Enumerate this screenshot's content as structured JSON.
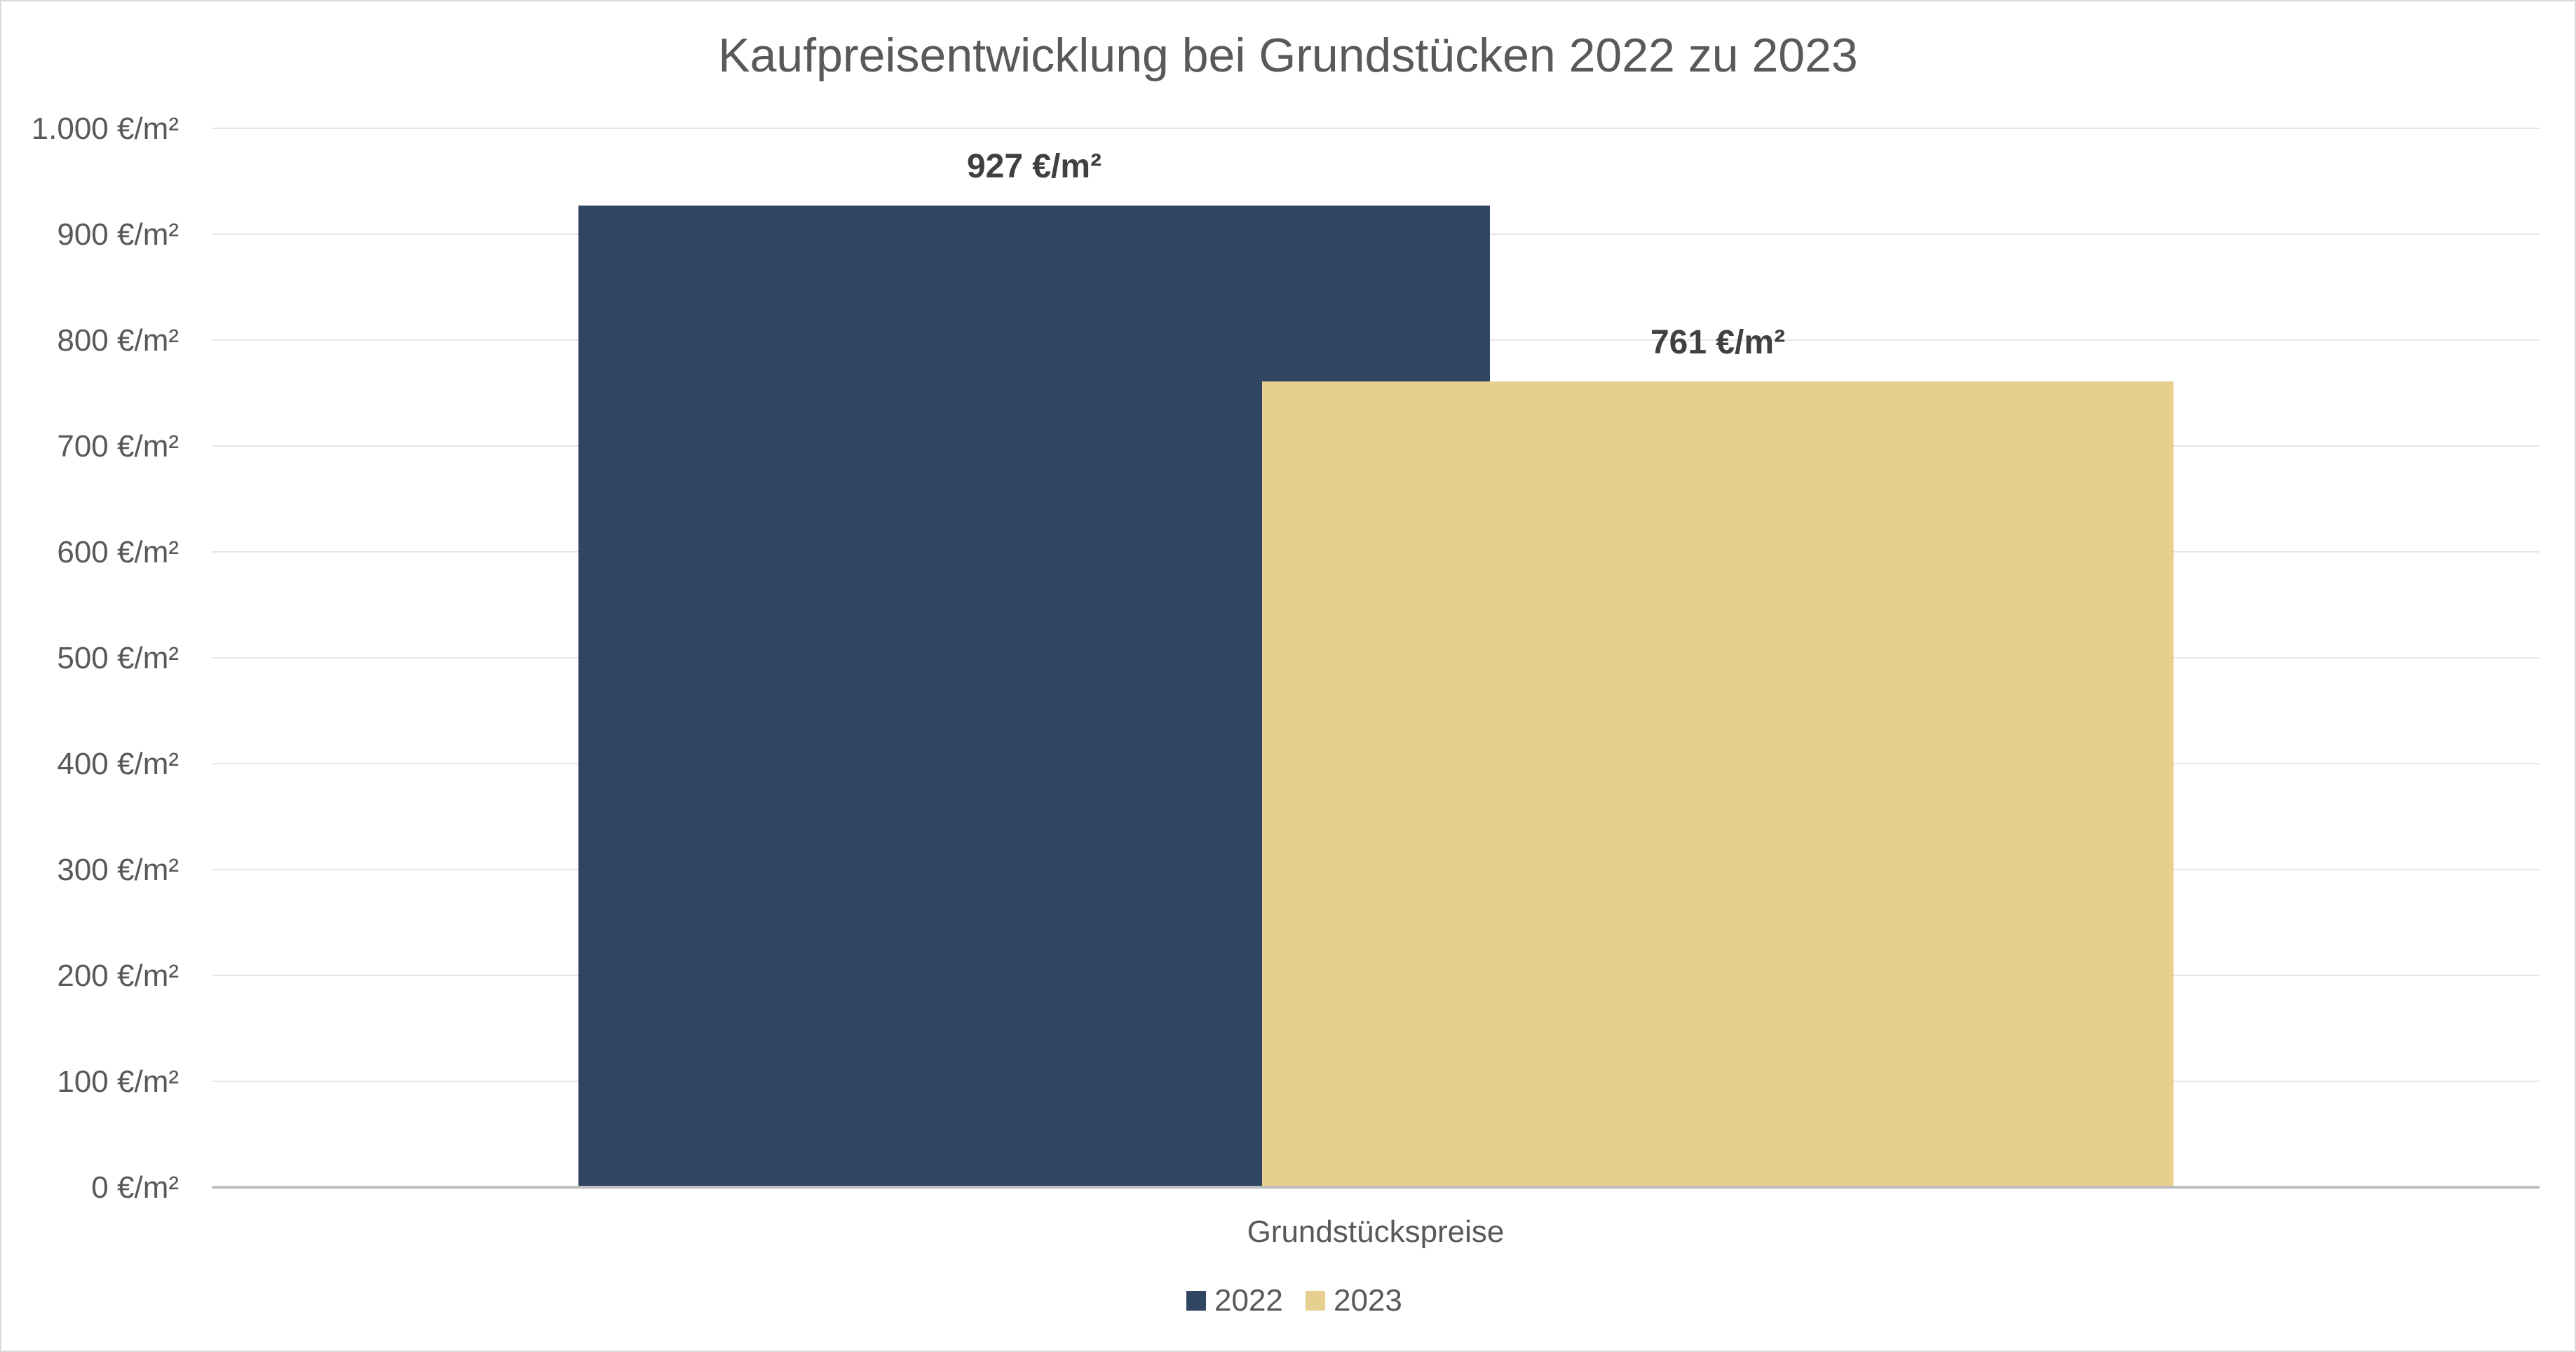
{
  "chart_data": {
    "type": "bar",
    "title": "Kaufpreisentwicklung bei Grundstücken 2022 zu 2023",
    "categories": [
      "Grundstückspreise"
    ],
    "series": [
      {
        "name": "2022",
        "values": [
          927
        ],
        "color": "#304561",
        "label": "927 €/m²"
      },
      {
        "name": "2023",
        "values": [
          761
        ],
        "color": "#e7d08f",
        "label": "761 €/m²"
      }
    ],
    "ylim": [
      0,
      1000
    ],
    "yticks": [
      {
        "value": 0,
        "label": "0 €/m²"
      },
      {
        "value": 100,
        "label": "100 €/m²"
      },
      {
        "value": 200,
        "label": "200 €/m²"
      },
      {
        "value": 300,
        "label": "300 €/m²"
      },
      {
        "value": 400,
        "label": "400 €/m²"
      },
      {
        "value": 500,
        "label": "500 €/m²"
      },
      {
        "value": 600,
        "label": "600 €/m²"
      },
      {
        "value": 700,
        "label": "700 €/m²"
      },
      {
        "value": 800,
        "label": "800 €/m²"
      },
      {
        "value": 900,
        "label": "900 €/m²"
      },
      {
        "value": 1000,
        "label": "1.000 €/m²"
      }
    ],
    "grid": true,
    "legend_position": "bottom"
  }
}
